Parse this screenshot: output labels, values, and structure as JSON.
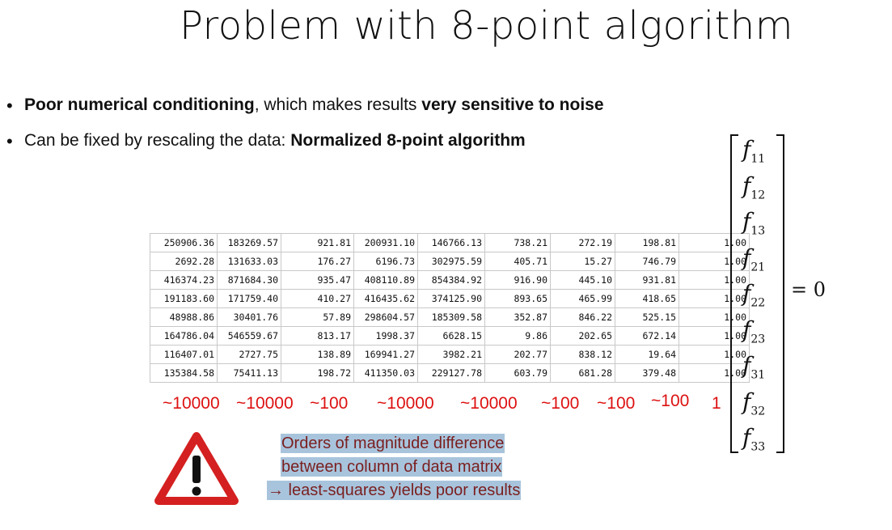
{
  "title": "Problem with 8-point algorithm",
  "bullets": [
    {
      "strong1": "Poor numerical conditioning",
      "text1": ", which makes results ",
      "strong2": "very sensitive to noise"
    },
    {
      "text1": "Can be fixed by rescaling the data: ",
      "strong1": "Normalized 8-point algorithm"
    }
  ],
  "matrix": [
    [
      "250906.36",
      "183269.57",
      "921.81",
      "200931.10",
      "146766.13",
      "738.21",
      "272.19",
      "198.81",
      "1.00"
    ],
    [
      "2692.28",
      "131633.03",
      "176.27",
      "6196.73",
      "302975.59",
      "405.71",
      "15.27",
      "746.79",
      "1.00"
    ],
    [
      "416374.23",
      "871684.30",
      "935.47",
      "408110.89",
      "854384.92",
      "916.90",
      "445.10",
      "931.81",
      "1.00"
    ],
    [
      "191183.60",
      "171759.40",
      "410.27",
      "416435.62",
      "374125.90",
      "893.65",
      "465.99",
      "418.65",
      "1.00"
    ],
    [
      "48988.86",
      "30401.76",
      "57.89",
      "298604.57",
      "185309.58",
      "352.87",
      "846.22",
      "525.15",
      "1.00"
    ],
    [
      "164786.04",
      "546559.67",
      "813.17",
      "1998.37",
      "6628.15",
      "9.86",
      "202.65",
      "672.14",
      "1.00"
    ],
    [
      "116407.01",
      "2727.75",
      "138.89",
      "169941.27",
      "3982.21",
      "202.77",
      "838.12",
      "19.64",
      "1.00"
    ],
    [
      "135384.58",
      "75411.13",
      "198.72",
      "411350.03",
      "229127.78",
      "603.79",
      "681.28",
      "379.48",
      "1.00"
    ]
  ],
  "magnitudes": [
    "~10000",
    "~10000",
    "~100",
    "~10000",
    "~10000",
    "~100",
    "~100",
    "~100",
    "1"
  ],
  "vector": [
    {
      "base": "f",
      "sub": "11"
    },
    {
      "base": "f",
      "sub": "12"
    },
    {
      "base": "f",
      "sub": "13"
    },
    {
      "base": "f",
      "sub": "21"
    },
    {
      "base": "f",
      "sub": "22"
    },
    {
      "base": "f",
      "sub": "23"
    },
    {
      "base": "f",
      "sub": "31"
    },
    {
      "base": "f",
      "sub": "32"
    },
    {
      "base": "f",
      "sub": "33"
    }
  ],
  "equals": "= 0",
  "note": [
    "Orders of magnitude difference",
    "between column of data matrix",
    "→ least-squares yields poor results"
  ],
  "colors": {
    "magnitude": "#dd1111",
    "warning": "#d42020",
    "note_bg": "#a8c4dc",
    "note_text": "#7a1f1f"
  },
  "icons": {
    "warning": "warning-triangle-icon"
  }
}
